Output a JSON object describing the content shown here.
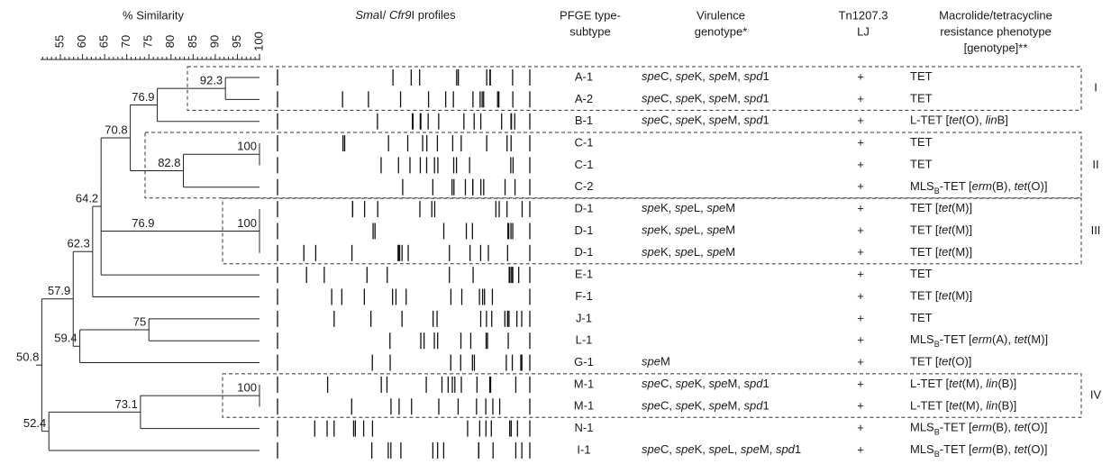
{
  "headers": {
    "similarity": "% Similarity",
    "profiles": "SmaI/ Cfr9I profiles",
    "pfge": [
      "PFGE type-",
      "subtype"
    ],
    "virulence": [
      "Virulence",
      "genotype*"
    ],
    "tn": [
      "Tn1207.3",
      "LJ"
    ],
    "resistance": [
      "Macrolide/tetracycline",
      "resistance phenotype",
      "[genotype]**"
    ]
  },
  "axis": {
    "ticks": [
      "55",
      "60",
      "65",
      "70",
      "75",
      "80",
      "85",
      "90",
      "95",
      "100"
    ]
  },
  "nodes": [
    "92.3",
    "76.9",
    "100",
    "82.8",
    "70.8",
    "100",
    "76.9",
    "64.2",
    "62.3",
    "75",
    "59.4",
    "57.9",
    "100",
    "73.1",
    "52.4",
    "50.8"
  ],
  "rows": [
    {
      "type": "A-1",
      "virulence": "speC, speK, speM, spd1",
      "tn": "+",
      "resistance": "TET"
    },
    {
      "type": "A-2",
      "virulence": "speC, speK, speM, spd1",
      "tn": "+",
      "resistance": "TET"
    },
    {
      "type": "B-1",
      "virulence": "speC, speK, speM, spd1",
      "tn": "+",
      "resistance": "L-TET [tet(O), linB]"
    },
    {
      "type": "C-1",
      "tn": "+",
      "resistance": "TET"
    },
    {
      "type": "C-1",
      "tn": "+",
      "resistance": "TET"
    },
    {
      "type": "C-2",
      "tn": "+",
      "resistance": "MLSB-TET [erm(B), tet(O)]"
    },
    {
      "type": "D-1",
      "virulence": "speK, speL, speM",
      "tn": "+",
      "resistance": "TET [tet(M)]"
    },
    {
      "type": "D-1",
      "virulence": "speK, speL, speM",
      "tn": "+",
      "resistance": "TET [tet(M)]"
    },
    {
      "type": "D-1",
      "virulence": "speK, speL, speM",
      "tn": "+",
      "resistance": "TET [tet(M)]"
    },
    {
      "type": "E-1",
      "tn": "+",
      "resistance": "TET"
    },
    {
      "type": "F-1",
      "tn": "+",
      "resistance": "TET [tet(M)]"
    },
    {
      "type": "J-1",
      "tn": "+",
      "resistance": "TET"
    },
    {
      "type": "L-1",
      "tn": "+",
      "resistance": "MLSB-TET [erm(A), tet(M)]"
    },
    {
      "type": "G-1",
      "virulence": "speM",
      "tn": "+",
      "resistance": "TET [tet(O)]"
    },
    {
      "type": "M-1",
      "virulence": "speC, speK, speM, spd1",
      "tn": "+",
      "resistance": "L-TET [tet(M), lin(B)]"
    },
    {
      "type": "M-1",
      "virulence": "speC, speK, speM, spd1",
      "tn": "+",
      "resistance": "L-TET [tet(M), lin(B)]"
    },
    {
      "type": "N-1",
      "tn": "+",
      "resistance": "MLSB-TET [erm(B), tet(O)]"
    },
    {
      "type": "I-1",
      "virulence": "speC, speK, speL, speM, spd1",
      "tn": "+",
      "resistance": "MLSB-TET [erm(B), tet(O)]"
    }
  ],
  "clusters": [
    "I",
    "II",
    "III",
    "IV"
  ]
}
